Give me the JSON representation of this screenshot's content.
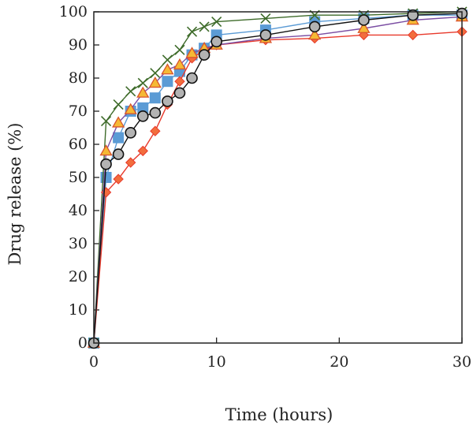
{
  "chart_data": {
    "type": "line",
    "title": "",
    "xlabel": "Time (hours)",
    "ylabel": "Drug release (%)",
    "xlim": [
      0,
      30
    ],
    "ylim": [
      0,
      100
    ],
    "xticks": [
      "0",
      "10",
      "20",
      "30"
    ],
    "yticks": [
      "0",
      "10",
      "20",
      "30",
      "40",
      "50",
      "60",
      "70",
      "80",
      "90",
      "100"
    ],
    "grid": false,
    "legend": "none",
    "series": [
      {
        "marker": "square",
        "line_color": "#5b9bd5",
        "marker_fill": "#5b9bd5",
        "marker_stroke": "#5b9bd5",
        "x": [
          0,
          1,
          2,
          3,
          4,
          5,
          6,
          7,
          8,
          9,
          10,
          14,
          18,
          22,
          26,
          30
        ],
        "y": [
          0,
          50,
          62,
          70,
          71,
          74,
          79,
          82,
          87,
          89,
          93,
          94.5,
          97,
          98,
          99,
          99
        ]
      },
      {
        "marker": "x",
        "line_color": "#3e6b2a",
        "marker_fill": "none",
        "marker_stroke": "#3e6b2a",
        "x": [
          0,
          1,
          2,
          3,
          4,
          5,
          6,
          7,
          8,
          9,
          10,
          14,
          18,
          22,
          26,
          30
        ],
        "y": [
          0,
          67,
          72,
          76,
          78.5,
          81.5,
          85.5,
          88.5,
          94,
          95.5,
          97,
          98,
          99,
          99,
          99.5,
          100
        ]
      },
      {
        "marker": "diamond",
        "line_color": "#e8392b",
        "marker_fill": "#f26d3d",
        "marker_stroke": "#e8392b",
        "x": [
          0,
          1,
          2,
          3,
          4,
          5,
          6,
          7,
          8,
          9,
          10,
          14,
          18,
          22,
          26,
          30
        ],
        "y": [
          0,
          45.5,
          49.5,
          54.5,
          58,
          64,
          72,
          79,
          86,
          88.5,
          90,
          91.5,
          92,
          93,
          93,
          94
        ]
      },
      {
        "marker": "triangle",
        "line_color": "#7b4ea3",
        "marker_fill": "#f5b935",
        "marker_stroke": "#d9542c",
        "x": [
          0,
          1,
          2,
          3,
          4,
          5,
          6,
          7,
          8,
          9,
          10,
          14,
          18,
          22,
          26,
          30
        ],
        "y": [
          0,
          58,
          66.5,
          70.5,
          75.5,
          78.5,
          82.5,
          84,
          87.5,
          89,
          90,
          92,
          93,
          95,
          97.5,
          98.5
        ]
      },
      {
        "marker": "circle",
        "line_color": "#111111",
        "marker_fill": "#b3b3b3",
        "marker_stroke": "#111111",
        "x": [
          0,
          1,
          2,
          3,
          4,
          5,
          6,
          7,
          8,
          9,
          10,
          14,
          18,
          22,
          26,
          30
        ],
        "y": [
          0,
          54,
          57,
          63.5,
          68.5,
          69.5,
          73,
          75.5,
          80,
          87,
          91,
          93,
          95.5,
          97.5,
          99,
          99.5
        ]
      }
    ]
  }
}
